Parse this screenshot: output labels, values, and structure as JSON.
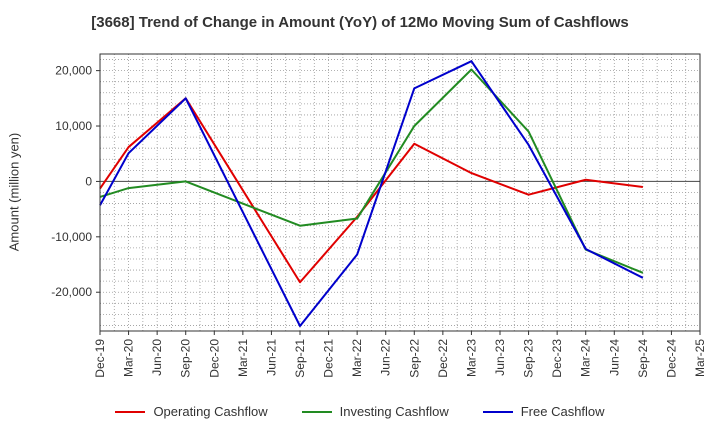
{
  "chart_data": {
    "type": "line",
    "title": "[3668]  Trend of Change in Amount (YoY) of 12Mo Moving Sum of Cashflows",
    "xlabel": "",
    "ylabel": "Amount (million yen)",
    "categories": [
      "Dec-19",
      "Mar-20",
      "Jun-20",
      "Sep-20",
      "Dec-20",
      "Mar-21",
      "Jun-21",
      "Sep-21",
      "Dec-21",
      "Mar-22",
      "Jun-22",
      "Sep-22",
      "Dec-22",
      "Mar-23",
      "Jun-23",
      "Sep-23",
      "Dec-23",
      "Mar-24",
      "Jun-24",
      "Sep-24",
      "Dec-24",
      "Mar-25"
    ],
    "ylim": [
      -27000,
      23000
    ],
    "yticks": [
      -20000,
      -10000,
      0,
      10000,
      20000
    ],
    "ytick_labels": [
      "-20,000",
      "-10,000",
      "0",
      "10,000",
      "20,000"
    ],
    "grid": true,
    "legend_position": "bottom",
    "series": [
      {
        "name": "Operating Cashflow",
        "color": "#e00000",
        "values": [
          -1300,
          6200,
          null,
          15000,
          null,
          null,
          null,
          -18200,
          null,
          -6400,
          null,
          6800,
          null,
          1500,
          null,
          -2400,
          null,
          300,
          null,
          -1000,
          null,
          null
        ]
      },
      {
        "name": "Investing Cashflow",
        "color": "#228b22",
        "values": [
          -2800,
          -1200,
          null,
          0,
          null,
          null,
          null,
          -8000,
          null,
          -6700,
          null,
          10000,
          null,
          20200,
          null,
          9000,
          null,
          -12300,
          null,
          -16500,
          null,
          null
        ]
      },
      {
        "name": "Free Cashflow",
        "color": "#0000cc",
        "values": [
          -4300,
          5100,
          null,
          15000,
          null,
          null,
          null,
          -26100,
          null,
          -13200,
          null,
          16800,
          null,
          21700,
          null,
          6600,
          null,
          -12200,
          null,
          -17400,
          null,
          null
        ]
      }
    ]
  }
}
